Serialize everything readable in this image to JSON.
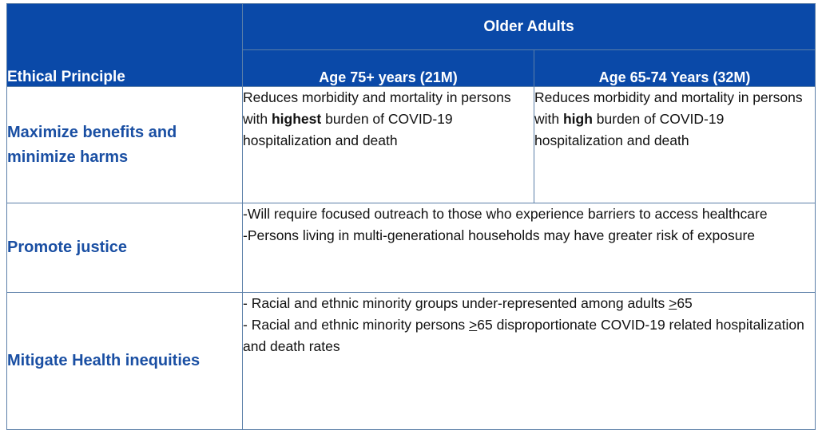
{
  "header": {
    "principle_col": "Ethical Principle",
    "group_title": "Older Adults",
    "col_a": "Age 75+ years   (21M)",
    "col_b": "Age 65-74 Years  (32M)"
  },
  "rows": [
    {
      "principle": "Maximize benefits and minimize harms",
      "col_a": {
        "pre": "Reduces morbidity and mortality in persons with ",
        "bold": "highest",
        "post": " burden of COVID-19 hospitalization and death"
      },
      "col_b": {
        "pre": "Reduces morbidity and mortality in persons with ",
        "bold": "high",
        "post": " burden of COVID-19 hospitalization and death"
      }
    },
    {
      "principle": "Promote justice",
      "lines": [
        "-Will require focused outreach to those who experience barriers to access healthcare",
        "-Persons living in multi-generational households may have greater risk of exposure"
      ]
    },
    {
      "principle": "Mitigate Health inequities",
      "line1_pre": "- Racial and ethnic minority groups under-represented among adults ",
      "line1_sym": ">",
      "line1_post": "65",
      "line2_pre": "- Racial and ethnic minority persons ",
      "line2_sym": ">",
      "line2_post": "65 disproportionate COVID-19 related hospitalization and death rates"
    }
  ],
  "colors": {
    "header_bg": "#0a49a8",
    "principle_text": "#1a4fa3",
    "border": "#5b7fa8"
  }
}
